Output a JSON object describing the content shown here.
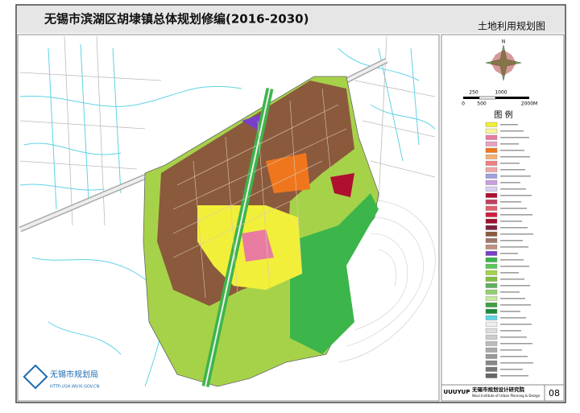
{
  "header": {
    "title": "无锡市滨湖区胡埭镇总体规划修编(2016-2030)",
    "subtitle": "土地利用规划图"
  },
  "legend": {
    "north": "N",
    "scale_labels": [
      "250",
      "1000",
      "0",
      "500",
      "2000M"
    ],
    "title": "图  例"
  },
  "map": {
    "bureau": "无锡市规划局",
    "url": "HTTP://GH.WUXI.GOV.CN"
  },
  "footer": {
    "logo_text": "UUUYUP",
    "institute": "无锡市规划设计研究院",
    "institute_en": "Wuxi Institute of Urban Planning & Design",
    "page": "08"
  }
}
